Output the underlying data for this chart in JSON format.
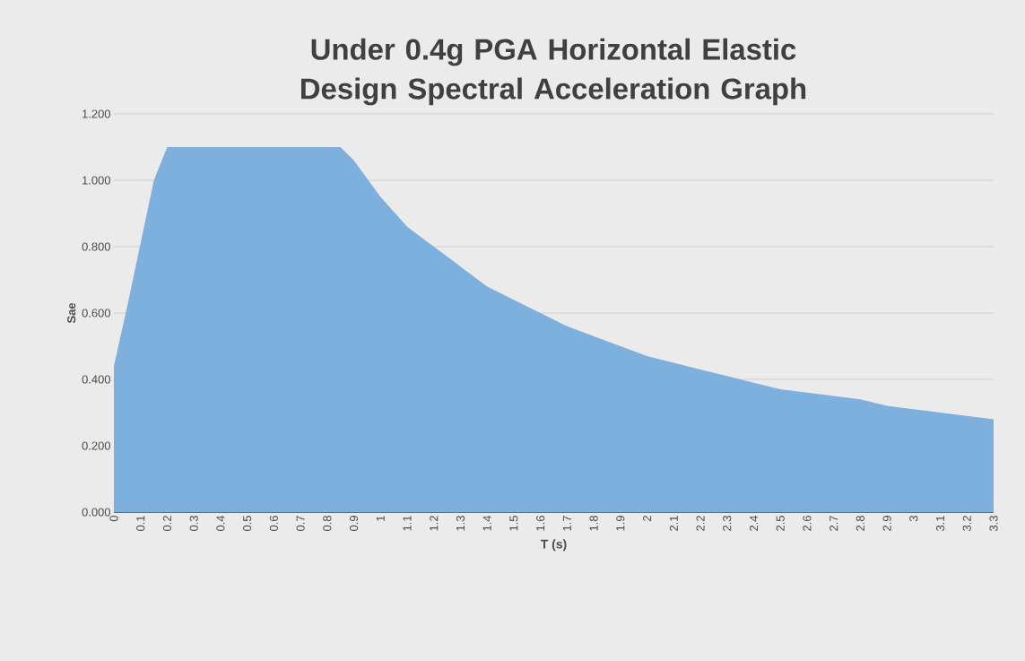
{
  "chart_data": {
    "type": "area",
    "title": "Under 0.4g PGA Horizontal Elastic Design Spectral Acceleration Graph",
    "xlabel": "T (s)",
    "ylabel": "Sae",
    "x": [
      0,
      0.05,
      0.1,
      0.15,
      0.2,
      0.85,
      0.9,
      1.0,
      1.1,
      1.2,
      1.3,
      1.4,
      1.5,
      1.6,
      1.7,
      1.8,
      1.9,
      2.0,
      2.1,
      2.2,
      2.3,
      2.4,
      2.5,
      2.6,
      2.7,
      2.8,
      2.9,
      3.0,
      3.1,
      3.2,
      3.3
    ],
    "values": [
      0.44,
      0.62,
      0.81,
      1.0,
      1.1,
      1.1,
      1.06,
      0.95,
      0.86,
      0.8,
      0.74,
      0.68,
      0.64,
      0.6,
      0.56,
      0.53,
      0.5,
      0.47,
      0.45,
      0.43,
      0.41,
      0.39,
      0.37,
      0.36,
      0.35,
      0.34,
      0.32,
      0.31,
      0.3,
      0.29,
      0.28
    ],
    "color": "#7eb0de",
    "xlim": [
      0,
      3.3
    ],
    "ylim": [
      0,
      1.2
    ],
    "xticks": [
      0,
      0.1,
      0.2,
      0.3,
      0.4,
      0.5,
      0.6,
      0.7,
      0.8,
      0.9,
      1,
      1.1,
      1.2,
      1.3,
      1.4,
      1.5,
      1.6,
      1.7,
      1.8,
      1.9,
      2,
      2.1,
      2.2,
      2.3,
      2.4,
      2.5,
      2.6,
      2.7,
      2.8,
      2.9,
      3,
      3.1,
      3.2,
      3.3
    ],
    "yticks": [
      {
        "value": 0,
        "label": "0.000"
      },
      {
        "value": 0.2,
        "label": "0.200"
      },
      {
        "value": 0.4,
        "label": "0.400"
      },
      {
        "value": 0.6,
        "label": "0.600"
      },
      {
        "value": 0.8,
        "label": "0.800"
      },
      {
        "value": 1.0,
        "label": "1.000"
      },
      {
        "value": 1.2,
        "label": "1.200"
      }
    ],
    "grid": "y"
  }
}
